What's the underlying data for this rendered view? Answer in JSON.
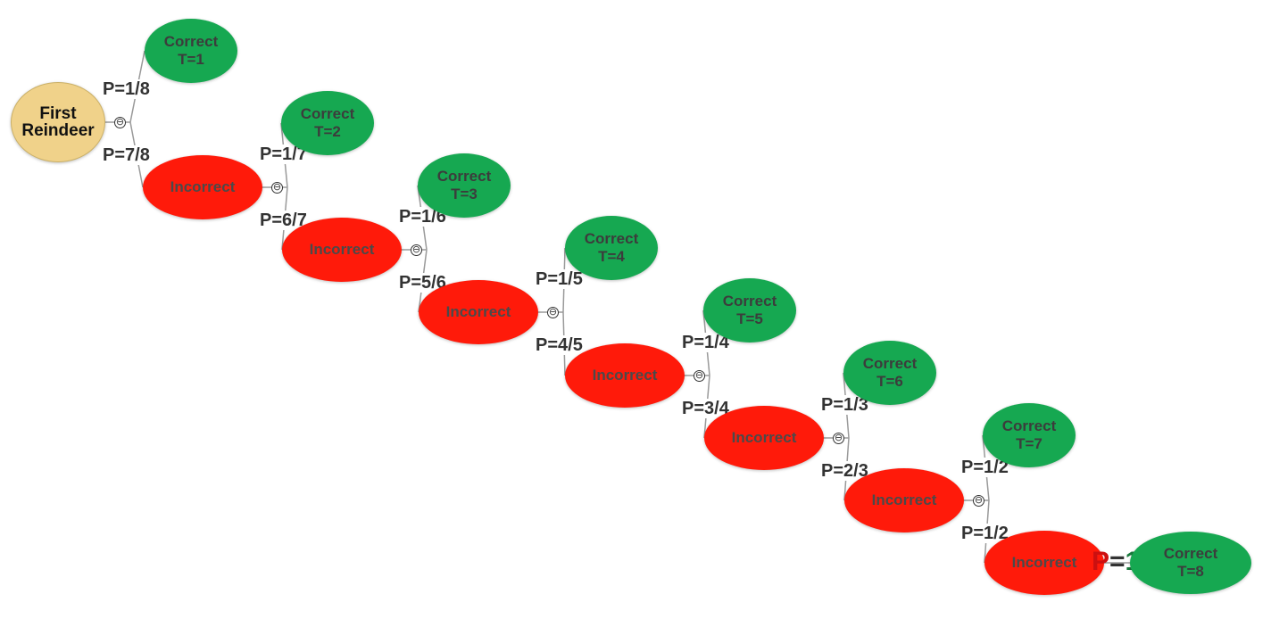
{
  "root": {
    "line1": "First",
    "line2": "Reindeer"
  },
  "steps": [
    {
      "correct": [
        "Correct",
        "T=1"
      ],
      "p_correct": "P=1/8",
      "p_incorrect": "P=7/8",
      "incorrect": "Incorrect"
    },
    {
      "correct": [
        "Correct",
        "T=2"
      ],
      "p_correct": "P=1/7",
      "p_incorrect": "P=6/7",
      "incorrect": "Incorrect"
    },
    {
      "correct": [
        "Correct",
        "T=3"
      ],
      "p_correct": "P=1/6",
      "p_incorrect": "P=5/6",
      "incorrect": "Incorrect"
    },
    {
      "correct": [
        "Correct",
        "T=4"
      ],
      "p_correct": "P=1/5",
      "p_incorrect": "P=4/5",
      "incorrect": "Incorrect"
    },
    {
      "correct": [
        "Correct",
        "T=5"
      ],
      "p_correct": "P=1/4",
      "p_incorrect": "P=3/4",
      "incorrect": "Incorrect"
    },
    {
      "correct": [
        "Correct",
        "T=6"
      ],
      "p_correct": "P=1/3",
      "p_incorrect": "P=2/3",
      "incorrect": "Incorrect"
    },
    {
      "correct": [
        "Correct",
        "T=7"
      ],
      "p_correct": "P=1/2",
      "p_incorrect": "P=1/2",
      "incorrect": "Incorrect"
    }
  ],
  "final": {
    "label_p": "P",
    "label_eq": "=",
    "label_one": "1",
    "correct": [
      "Correct",
      "T=8"
    ]
  },
  "collapse_symbol": "⊖",
  "colors": {
    "correct": "#16a851",
    "incorrect": "#ff1a0a",
    "root": "#f0d28a",
    "edge": "#9a9a9a"
  }
}
